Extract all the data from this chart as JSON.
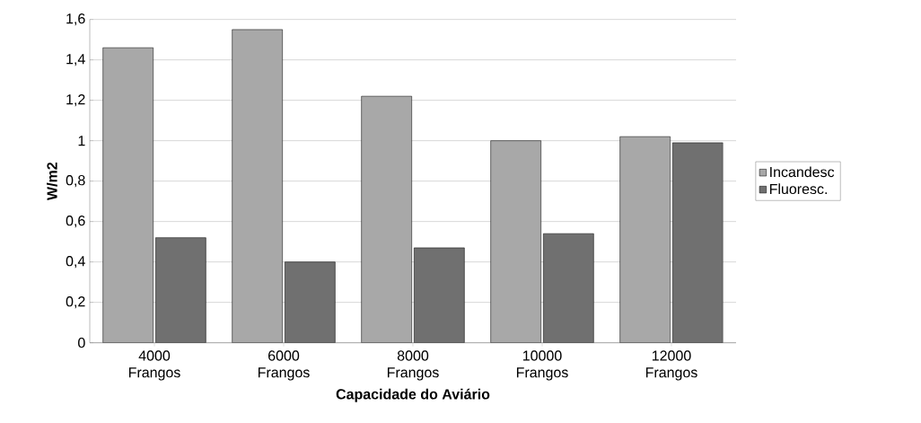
{
  "chart_data": {
    "type": "bar",
    "xlabel": "Capacidade do Aviário",
    "ylabel": "W/m2",
    "categories": [
      "4000 Frangos",
      "6000 Frangos",
      "8000 Frangos",
      "10000 Frangos",
      "12000 Frangos"
    ],
    "series": [
      {
        "name": "Incandesc",
        "color": "#a8a8a8",
        "values": [
          1.46,
          1.55,
          1.22,
          1.0,
          1.02
        ]
      },
      {
        "name": "Fluoresc.",
        "color": "#707070",
        "values": [
          0.52,
          0.4,
          0.47,
          0.54,
          0.99
        ]
      }
    ],
    "ylim": [
      0,
      1.6
    ],
    "yticks": [
      0,
      {
        "value": 0.2,
        "label": "0,2"
      },
      {
        "value": 0.4,
        "label": "0,4"
      },
      {
        "value": 0.6,
        "label": "0,6"
      },
      {
        "value": 0.8,
        "label": "0,8"
      },
      1,
      {
        "value": 1.2,
        "label": "1,2"
      },
      {
        "value": 1.4,
        "label": "1,4"
      },
      {
        "value": 1.6,
        "label": "1,6"
      }
    ],
    "grid": "y",
    "legend": "right"
  }
}
